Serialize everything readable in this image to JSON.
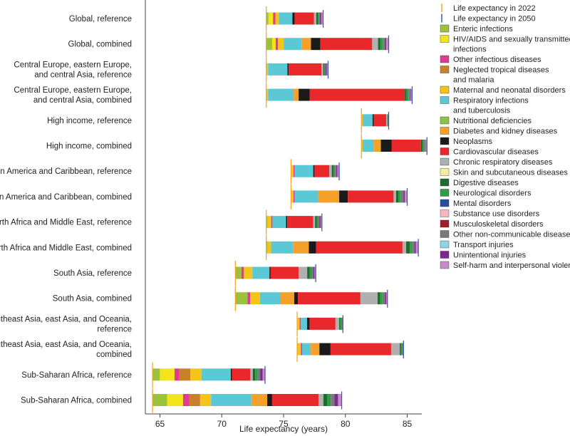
{
  "chart_data": {
    "type": "stacked-bar-horizontal",
    "xlabel": "Life expectancy (years)",
    "xlim": [
      62.5,
      87
    ],
    "xticks": [
      65,
      70,
      75,
      80,
      85
    ],
    "xtick_labels": [
      "65",
      "70",
      "75",
      "80",
      "85"
    ],
    "legend": [
      {
        "key": "le2022",
        "label": "Life expectancy in 2022",
        "kind": "line",
        "color": "#f5a623"
      },
      {
        "key": "le2050",
        "label": "Life expectancy in 2050",
        "kind": "line",
        "color": "#3b5bb5"
      },
      {
        "key": "enteric",
        "label": "Enteric infections",
        "color": "#9ac23c"
      },
      {
        "key": "hiv",
        "label": "HIV/AIDS and sexually transmitted infections",
        "lines": [
          "HIV/AIDS and sexually transmitted",
          "infections"
        ],
        "color": "#f2e51a"
      },
      {
        "key": "otherinf",
        "label": "Other infectious diseases",
        "color": "#e03c96"
      },
      {
        "key": "ntd",
        "label": "Neglected tropical diseases and malaria",
        "lines": [
          "Neglected tropical diseases",
          "and malaria"
        ],
        "color": "#c8802a"
      },
      {
        "key": "maternal",
        "label": "Maternal and neonatal disorders",
        "color": "#f4c41a"
      },
      {
        "key": "respinf",
        "label": "Respiratory infections and tuberculosis",
        "lines": [
          "Respiratory infections",
          "and tuberculosis"
        ],
        "color": "#5bc8d6"
      },
      {
        "key": "nutrition",
        "label": "Nutritional deficiencies",
        "color": "#8bc34a"
      },
      {
        "key": "diabetes",
        "label": "Diabetes and kidney diseases",
        "color": "#f5a02a"
      },
      {
        "key": "neoplasms",
        "label": "Neoplasms",
        "color": "#1a1a1a"
      },
      {
        "key": "cardio",
        "label": "Cardiovascular diseases",
        "color": "#e8282b"
      },
      {
        "key": "chronicresp",
        "label": "Chronic respiratory diseases",
        "color": "#b0b0b0"
      },
      {
        "key": "skin",
        "label": "Skin and subcutaneous diseases",
        "color": "#f7eda0"
      },
      {
        "key": "digestive",
        "label": "Digestive diseases",
        "color": "#1f6b2f"
      },
      {
        "key": "neuro",
        "label": "Neurological disorders",
        "color": "#2e9e4a"
      },
      {
        "key": "mental",
        "label": "Mental disorders",
        "color": "#2a4fa0"
      },
      {
        "key": "substance",
        "label": "Substance use disorders",
        "color": "#f5b8c2"
      },
      {
        "key": "msk",
        "label": "Musculoskeletal disorders",
        "color": "#a01c2a"
      },
      {
        "key": "otherncd",
        "label": "Other non-communicable diseases",
        "color": "#7a7a7a"
      },
      {
        "key": "transport",
        "label": "Transport injuries",
        "color": "#8fd5e8"
      },
      {
        "key": "unintentional",
        "label": "Unintentional injuries",
        "color": "#7b2a8e"
      },
      {
        "key": "selfharm",
        "label": "Self-harm and interpersonal violence",
        "color": "#c98ac9"
      }
    ],
    "rows": [
      {
        "label": [
          "Global, reference"
        ],
        "le2022": 73.6,
        "le2050": 78.2,
        "segments": [
          [
            "enteric",
            0.2
          ],
          [
            "hiv",
            0.4
          ],
          [
            "otherinf",
            0.2
          ],
          [
            "maternal",
            0.3
          ],
          [
            "respinf",
            1.2
          ],
          [
            "neoplasms",
            0.2
          ],
          [
            "cardio",
            1.7
          ],
          [
            "chronicresp",
            0.2
          ],
          [
            "digestive",
            0.15
          ],
          [
            "neuro",
            0.1
          ],
          [
            "otherncd",
            0.1
          ],
          [
            "unintentional",
            0.1
          ],
          [
            "selfharm",
            0.15
          ]
        ]
      },
      {
        "label": [
          "Global, combined"
        ],
        "le2022": 73.6,
        "le2050": 83.5,
        "segments": [
          [
            "enteric",
            0.5
          ],
          [
            "hiv",
            0.3
          ],
          [
            "otherinf",
            0.2
          ],
          [
            "maternal",
            0.5
          ],
          [
            "respinf",
            1.5
          ],
          [
            "diabetes",
            0.8
          ],
          [
            "neoplasms",
            0.8
          ],
          [
            "cardio",
            4.4
          ],
          [
            "chronicresp",
            0.5
          ],
          [
            "digestive",
            0.2
          ],
          [
            "neuro",
            0.2
          ],
          [
            "otherncd",
            0.2
          ],
          [
            "unintentional",
            0.1
          ],
          [
            "selfharm",
            0.2
          ]
        ]
      },
      {
        "label": [
          "Central Europe, eastern Europe,",
          "and central Asia, reference"
        ],
        "le2022": 73.6,
        "le2050": 78.6,
        "segments": [
          [
            "maternal",
            0.15
          ],
          [
            "respinf",
            1.6
          ],
          [
            "neoplasms",
            0.1
          ],
          [
            "cardio",
            2.7
          ],
          [
            "chronicresp",
            0.15
          ],
          [
            "digestive",
            0.1
          ],
          [
            "otherncd",
            0.1
          ],
          [
            "unintentional",
            0.1
          ],
          [
            "selfharm",
            0.1
          ]
        ]
      },
      {
        "label": [
          "Central Europe, eastern Europe,",
          "and central Asia, combined"
        ],
        "le2022": 73.6,
        "le2050": 85.4,
        "segments": [
          [
            "maternal",
            0.15
          ],
          [
            "respinf",
            2.1
          ],
          [
            "diabetes",
            0.4
          ],
          [
            "neoplasms",
            0.9
          ],
          [
            "cardio",
            7.8
          ],
          [
            "digestive",
            0.15
          ],
          [
            "neuro",
            0.15
          ],
          [
            "otherncd",
            0.15
          ],
          [
            "unintentional",
            0.05
          ],
          [
            "selfharm",
            0.1
          ]
        ]
      },
      {
        "label": [
          "High income, reference"
        ],
        "le2022": 81.3,
        "le2050": 83.5,
        "segments": [
          [
            "maternal",
            0.1
          ],
          [
            "respinf",
            0.8
          ],
          [
            "neoplasms",
            0.1
          ],
          [
            "cardio",
            1.0
          ],
          [
            "chronicresp",
            0.1
          ],
          [
            "digestive",
            0.05
          ],
          [
            "otherncd",
            0.05
          ]
        ]
      },
      {
        "label": [
          "High income, combined"
        ],
        "le2022": 81.3,
        "le2050": 86.6,
        "segments": [
          [
            "maternal",
            0.1
          ],
          [
            "respinf",
            0.9
          ],
          [
            "diabetes",
            0.6
          ],
          [
            "neoplasms",
            0.9
          ],
          [
            "cardio",
            2.4
          ],
          [
            "digestive",
            0.15
          ],
          [
            "neuro",
            0.15
          ],
          [
            "otherncd",
            0.1
          ],
          [
            "selfharm",
            0.1
          ]
        ]
      },
      {
        "label": [
          "Latin America and Caribbean, reference"
        ],
        "le2022": 75.6,
        "le2050": 79.5,
        "segments": [
          [
            "maternal",
            0.2
          ],
          [
            "otherinf",
            0.1
          ],
          [
            "respinf",
            1.5
          ],
          [
            "neoplasms",
            0.1
          ],
          [
            "cardio",
            1.2
          ],
          [
            "chronicresp",
            0.2
          ],
          [
            "digestive",
            0.15
          ],
          [
            "neuro",
            0.1
          ],
          [
            "otherncd",
            0.1
          ],
          [
            "unintentional",
            0.1
          ],
          [
            "selfharm",
            0.15
          ]
        ]
      },
      {
        "label": [
          "Latin America and Caribbean, combined"
        ],
        "le2022": 75.6,
        "le2050": 85.0,
        "segments": [
          [
            "maternal",
            0.2
          ],
          [
            "otherinf",
            0.1
          ],
          [
            "respinf",
            1.9
          ],
          [
            "diabetes",
            1.7
          ],
          [
            "neoplasms",
            0.7
          ],
          [
            "cardio",
            3.7
          ],
          [
            "chronicresp",
            0.2
          ],
          [
            "digestive",
            0.2
          ],
          [
            "neuro",
            0.2
          ],
          [
            "otherncd",
            0.2
          ],
          [
            "unintentional",
            0.1
          ],
          [
            "selfharm",
            0.2
          ]
        ]
      },
      {
        "label": [
          "North Africa and Middle East, reference"
        ],
        "le2022": 73.6,
        "le2050": 78.1,
        "segments": [
          [
            "enteric",
            0.1
          ],
          [
            "maternal",
            0.3
          ],
          [
            "otherinf",
            0.1
          ],
          [
            "respinf",
            1.1
          ],
          [
            "neoplasms",
            0.1
          ],
          [
            "cardio",
            2.1
          ],
          [
            "chronicresp",
            0.15
          ],
          [
            "digestive",
            0.15
          ],
          [
            "neuro",
            0.1
          ],
          [
            "otherncd",
            0.1
          ],
          [
            "unintentional",
            0.1
          ],
          [
            "selfharm",
            0.1
          ]
        ]
      },
      {
        "label": [
          "North Africa and Middle East, combined"
        ],
        "le2022": 73.6,
        "le2050": 85.9,
        "segments": [
          [
            "enteric",
            0.1
          ],
          [
            "maternal",
            0.3
          ],
          [
            "respinf",
            1.8
          ],
          [
            "diabetes",
            1.3
          ],
          [
            "neoplasms",
            0.6
          ],
          [
            "cardio",
            7.1
          ],
          [
            "chronicresp",
            0.3
          ],
          [
            "digestive",
            0.3
          ],
          [
            "neuro",
            0.2
          ],
          [
            "otherncd",
            0.2
          ],
          [
            "unintentional",
            0.1
          ],
          [
            "selfharm",
            0.2
          ]
        ]
      },
      {
        "label": [
          "South Asia, reference"
        ],
        "le2022": 71.1,
        "le2050": 77.6,
        "segments": [
          [
            "enteric",
            0.5
          ],
          [
            "otherinf",
            0.2
          ],
          [
            "maternal",
            0.7
          ],
          [
            "respinf",
            1.4
          ],
          [
            "neoplasms",
            0.1
          ],
          [
            "cardio",
            2.3
          ],
          [
            "chronicresp",
            0.7
          ],
          [
            "digestive",
            0.2
          ],
          [
            "neuro",
            0.2
          ],
          [
            "otherncd",
            0.1
          ],
          [
            "unintentional",
            0.1
          ],
          [
            "selfharm",
            0.1
          ]
        ]
      },
      {
        "label": [
          "South Asia, combined"
        ],
        "le2022": 71.1,
        "le2050": 83.4,
        "segments": [
          [
            "enteric",
            1.0
          ],
          [
            "otherinf",
            0.2
          ],
          [
            "maternal",
            0.8
          ],
          [
            "respinf",
            1.7
          ],
          [
            "diabetes",
            1.1
          ],
          [
            "neoplasms",
            0.3
          ],
          [
            "cardio",
            5.1
          ],
          [
            "chronicresp",
            1.4
          ],
          [
            "digestive",
            0.2
          ],
          [
            "neuro",
            0.2
          ],
          [
            "otherncd",
            0.2
          ],
          [
            "unintentional",
            0.1
          ],
          [
            "selfharm",
            0.1
          ]
        ]
      },
      {
        "label": [
          "Southeast Asia, east Asia, and Oceania,",
          "reference"
        ],
        "le2022": 76.1,
        "le2050": 79.8,
        "segments": [
          [
            "maternal",
            0.2
          ],
          [
            "otherinf",
            0.1
          ],
          [
            "respinf",
            0.5
          ],
          [
            "neoplasms",
            0.2
          ],
          [
            "cardio",
            2.1
          ],
          [
            "chronicresp",
            0.3
          ],
          [
            "digestive",
            0.1
          ],
          [
            "neuro",
            0.1
          ],
          [
            "otherncd",
            0.1
          ]
        ]
      },
      {
        "label": [
          "Southeast Asia, east Asia, and Oceania,",
          "combined"
        ],
        "le2022": 76.1,
        "le2050": 84.7,
        "segments": [
          [
            "maternal",
            0.3
          ],
          [
            "otherinf",
            0.1
          ],
          [
            "respinf",
            0.7
          ],
          [
            "diabetes",
            0.7
          ],
          [
            "neoplasms",
            0.9
          ],
          [
            "cardio",
            4.9
          ],
          [
            "chronicresp",
            0.7
          ],
          [
            "digestive",
            0.1
          ],
          [
            "neuro",
            0.1
          ],
          [
            "otherncd",
            0.1
          ]
        ]
      },
      {
        "label": [
          "Sub-Saharan Africa, reference"
        ],
        "le2022": 64.4,
        "le2050": 73.5,
        "segments": [
          [
            "enteric",
            0.6
          ],
          [
            "hiv",
            1.2
          ],
          [
            "otherinf",
            0.4
          ],
          [
            "ntd",
            0.9
          ],
          [
            "maternal",
            0.9
          ],
          [
            "respinf",
            2.4
          ],
          [
            "neoplasms",
            0.1
          ],
          [
            "cardio",
            1.5
          ],
          [
            "chronicresp",
            0.2
          ],
          [
            "digestive",
            0.2
          ],
          [
            "neuro",
            0.2
          ],
          [
            "otherncd",
            0.2
          ],
          [
            "unintentional",
            0.2
          ],
          [
            "selfharm",
            0.2
          ]
        ]
      },
      {
        "label": [
          "Sub-Saharan Africa, combined"
        ],
        "le2022": 64.4,
        "le2050": 79.7,
        "segments": [
          [
            "enteric",
            1.2
          ],
          [
            "hiv",
            1.3
          ],
          [
            "otherinf",
            0.5
          ],
          [
            "ntd",
            0.9
          ],
          [
            "maternal",
            0.9
          ],
          [
            "respinf",
            3.3
          ],
          [
            "diabetes",
            1.3
          ],
          [
            "neoplasms",
            0.4
          ],
          [
            "cardio",
            3.8
          ],
          [
            "chronicresp",
            0.4
          ],
          [
            "digestive",
            0.3
          ],
          [
            "neuro",
            0.3
          ],
          [
            "otherncd",
            0.3
          ],
          [
            "unintentional",
            0.3
          ],
          [
            "selfharm",
            0.3
          ]
        ]
      }
    ]
  }
}
